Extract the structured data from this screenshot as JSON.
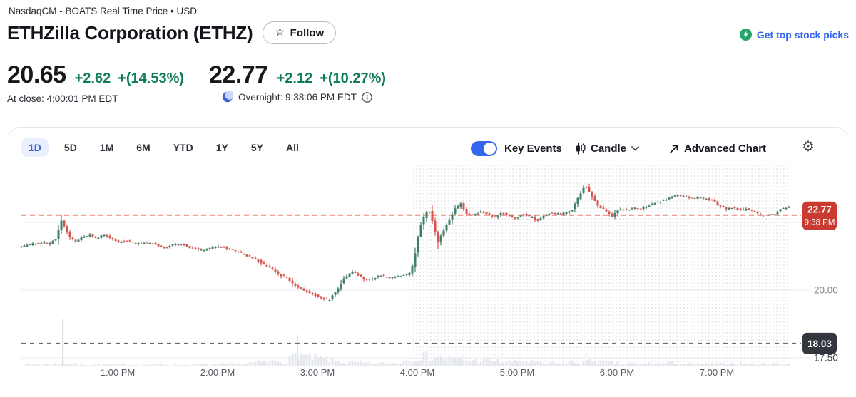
{
  "header": {
    "exchange_line": "NasdaqCM - BOATS Real Time Price • USD",
    "title": "ETHZilla Corporation (ETHZ)",
    "follow_label": "Follow",
    "get_picks_label": "Get top stock picks"
  },
  "quote": {
    "regular": {
      "price": "20.65",
      "change": "+2.62",
      "change_pct": "+(14.53%)",
      "at_close_label": "At close: 4:00:01 PM EDT"
    },
    "overnight": {
      "price": "22.77",
      "change": "+2.12",
      "change_pct": "+(10.27%)",
      "label": "Overnight: 9:38:06 PM EDT"
    }
  },
  "toolbar": {
    "ranges": [
      "1D",
      "5D",
      "1M",
      "6M",
      "YTD",
      "1Y",
      "5Y",
      "All"
    ],
    "selected_range": "1D",
    "key_events_label": "Key Events",
    "key_events_on": true,
    "chart_type_label": "Candle",
    "advanced_chart_label": "Advanced Chart"
  },
  "chart_data": {
    "type": "candlestick",
    "title": "ETHZ 1D intraday candlestick chart with overnight session",
    "x_tick_labels": [
      "1:00 PM",
      "2:00 PM",
      "3:00 PM",
      "4:00 PM",
      "5:00 PM",
      "6:00 PM",
      "7:00 PM"
    ],
    "y_ticks": [
      {
        "label": "20.00",
        "price": 20.0
      },
      {
        "label": "17.50",
        "price": 17.5
      }
    ],
    "grid_prices": [
      22.5,
      20.0,
      17.5
    ],
    "y_range": [
      17.2,
      24.3
    ],
    "last_trade": {
      "price": 22.77,
      "label": "22.77",
      "time_label": "9:38 PM"
    },
    "prev_close": {
      "price": 18.03,
      "label": "18.03"
    },
    "regular_close": {
      "price": 20.65,
      "time_label": "4:00 PM"
    },
    "overnight_region_starts_at": "4:00 PM",
    "price_path": [
      [
        17,
        21.6
      ],
      [
        32,
        21.68
      ],
      [
        47,
        21.76
      ],
      [
        57,
        21.7
      ],
      [
        67,
        21.88
      ],
      [
        75,
        22.55
      ],
      [
        80,
        22.3
      ],
      [
        87,
        21.95
      ],
      [
        95,
        21.78
      ],
      [
        105,
        21.95
      ],
      [
        115,
        22.02
      ],
      [
        125,
        21.9
      ],
      [
        135,
        22.05
      ],
      [
        145,
        21.88
      ],
      [
        155,
        21.76
      ],
      [
        167,
        21.82
      ],
      [
        182,
        21.7
      ],
      [
        197,
        21.76
      ],
      [
        212,
        21.64
      ],
      [
        222,
        21.56
      ],
      [
        232,
        21.66
      ],
      [
        245,
        21.7
      ],
      [
        257,
        21.56
      ],
      [
        272,
        21.46
      ],
      [
        287,
        21.56
      ],
      [
        302,
        21.6
      ],
      [
        317,
        21.46
      ],
      [
        332,
        21.3
      ],
      [
        347,
        21.14
      ],
      [
        359,
        20.95
      ],
      [
        372,
        20.75
      ],
      [
        382,
        20.55
      ],
      [
        392,
        20.46
      ],
      [
        402,
        20.15
      ],
      [
        412,
        20.05
      ],
      [
        422,
        19.92
      ],
      [
        432,
        19.8
      ],
      [
        442,
        19.7
      ],
      [
        450,
        19.62
      ],
      [
        457,
        19.88
      ],
      [
        464,
        20.12
      ],
      [
        472,
        20.45
      ],
      [
        484,
        20.7
      ],
      [
        492,
        20.55
      ],
      [
        502,
        20.36
      ],
      [
        512,
        20.42
      ],
      [
        522,
        20.55
      ],
      [
        532,
        20.45
      ],
      [
        545,
        20.5
      ],
      [
        557,
        20.55
      ],
      [
        565,
        20.65
      ],
      [
        570,
        21.2
      ],
      [
        577,
        22.3
      ],
      [
        584,
        22.75
      ],
      [
        590,
        23.0
      ],
      [
        597,
        22.35
      ],
      [
        603,
        21.75
      ],
      [
        609,
        22.1
      ],
      [
        617,
        22.5
      ],
      [
        627,
        23.0
      ],
      [
        635,
        23.18
      ],
      [
        642,
        22.85
      ],
      [
        652,
        22.75
      ],
      [
        662,
        22.9
      ],
      [
        672,
        22.8
      ],
      [
        682,
        22.7
      ],
      [
        692,
        22.85
      ],
      [
        702,
        22.75
      ],
      [
        712,
        22.65
      ],
      [
        722,
        22.8
      ],
      [
        732,
        22.7
      ],
      [
        742,
        22.56
      ],
      [
        752,
        22.75
      ],
      [
        762,
        22.85
      ],
      [
        772,
        22.8
      ],
      [
        782,
        22.85
      ],
      [
        792,
        23.0
      ],
      [
        802,
        23.55
      ],
      [
        809,
        23.88
      ],
      [
        817,
        23.55
      ],
      [
        827,
        23.1
      ],
      [
        837,
        22.95
      ],
      [
        847,
        22.7
      ],
      [
        857,
        23.0
      ],
      [
        867,
        22.95
      ],
      [
        877,
        23.05
      ],
      [
        887,
        23.0
      ],
      [
        897,
        23.1
      ],
      [
        907,
        23.22
      ],
      [
        917,
        23.3
      ],
      [
        927,
        23.4
      ],
      [
        937,
        23.5
      ],
      [
        947,
        23.45
      ],
      [
        957,
        23.4
      ],
      [
        972,
        23.4
      ],
      [
        987,
        23.35
      ],
      [
        997,
        23.1
      ],
      [
        1007,
        23.0
      ],
      [
        1017,
        23.05
      ],
      [
        1027,
        22.95
      ],
      [
        1037,
        23.0
      ],
      [
        1047,
        22.9
      ],
      [
        1055,
        22.75
      ],
      [
        1065,
        22.8
      ],
      [
        1075,
        22.78
      ],
      [
        1083,
        23.0
      ],
      [
        1093,
        23.05
      ]
    ],
    "volume_profile": [
      [
        17,
        0.07
      ],
      [
        60,
        0.08
      ],
      [
        72,
        0.1
      ],
      [
        78,
        0.1
      ],
      [
        100,
        0.07
      ],
      [
        140,
        0.06
      ],
      [
        200,
        0.06
      ],
      [
        260,
        0.06
      ],
      [
        320,
        0.08
      ],
      [
        370,
        0.18
      ],
      [
        390,
        0.2
      ],
      [
        404,
        0.45
      ],
      [
        420,
        0.3
      ],
      [
        440,
        0.26
      ],
      [
        455,
        0.2
      ],
      [
        470,
        0.15
      ],
      [
        490,
        0.12
      ],
      [
        520,
        0.1
      ],
      [
        545,
        0.12
      ],
      [
        562,
        0.25
      ],
      [
        580,
        0.35
      ],
      [
        600,
        0.3
      ],
      [
        620,
        0.25
      ],
      [
        650,
        0.2
      ],
      [
        680,
        0.18
      ],
      [
        710,
        0.15
      ],
      [
        727,
        0.18
      ],
      [
        740,
        0.12
      ],
      [
        770,
        0.1
      ],
      [
        800,
        0.15
      ],
      [
        820,
        0.2
      ],
      [
        840,
        0.12
      ],
      [
        870,
        0.1
      ],
      [
        900,
        0.1
      ],
      [
        930,
        0.12
      ],
      [
        960,
        0.08
      ],
      [
        990,
        0.09
      ],
      [
        1020,
        0.1
      ],
      [
        1050,
        0.08
      ],
      [
        1075,
        0.1
      ],
      [
        1093,
        0.1
      ]
    ],
    "volume_spikes": [
      [
        75,
        67
      ],
      [
        404,
        44
      ]
    ],
    "colors": {
      "up": "#3e8068",
      "down": "#d4544b",
      "up_wick": "#2f5c49",
      "down_wick": "#c04137",
      "last_line": "#f0827a",
      "last_badge": "#c93a30",
      "prev_line": "#686e76",
      "prev_badge": "#33373d",
      "grid": "#e8ebf1",
      "dots": "#e2e5e9",
      "volume": "#e3e7ed",
      "x_label": "#565b63",
      "y_label": "#7d838b",
      "y_label_dark": "#3f454d"
    }
  },
  "icons": {
    "follow_star": "☆",
    "gear": "⚙"
  }
}
